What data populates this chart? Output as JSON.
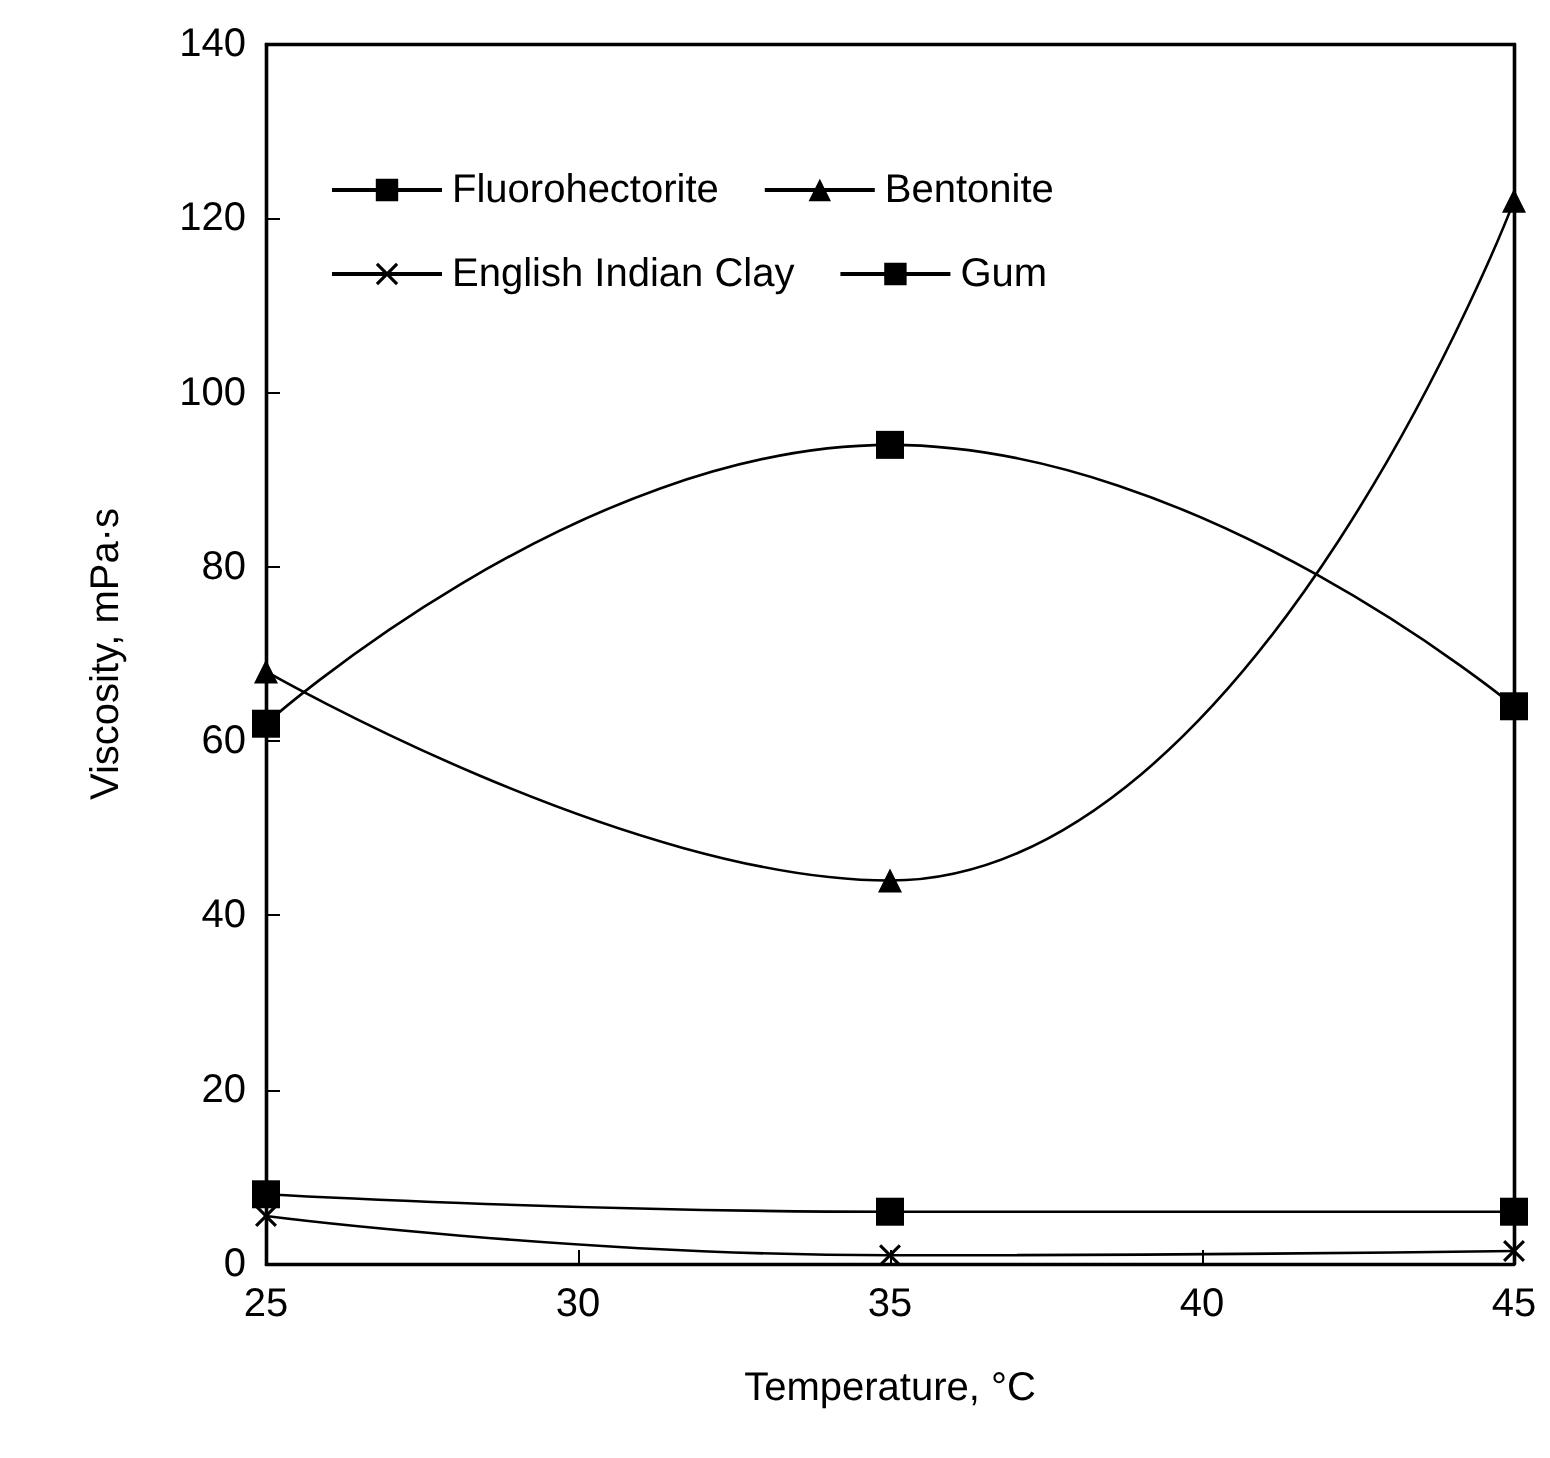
{
  "chart_data": {
    "type": "line",
    "xlabel": "Temperature, °C",
    "ylabel": "Viscosity, mPa·s",
    "x": [
      25,
      35,
      45
    ],
    "series": [
      {
        "name": "Fluorohectorite",
        "color": "#000000",
        "values": [
          62,
          94,
          64
        ],
        "marker": "square"
      },
      {
        "name": "Bentonite",
        "color": "#000000",
        "values": [
          68,
          44,
          122
        ],
        "marker": "triangle"
      },
      {
        "name": "English Indian Clay",
        "color": "#000000",
        "values": [
          5.5,
          1,
          1.5
        ],
        "marker": "cross"
      },
      {
        "name": "Gum",
        "color": "#000000",
        "values": [
          8,
          6,
          6
        ],
        "marker": "square"
      }
    ],
    "xlim": [
      25,
      45
    ],
    "xticks": [
      25,
      30,
      35,
      40,
      45
    ],
    "ylim": [
      0,
      140
    ],
    "yticks": [
      0,
      20,
      40,
      60,
      80,
      100,
      120,
      140
    ],
    "grid": false,
    "legend": "top left",
    "line_style": "solid"
  }
}
